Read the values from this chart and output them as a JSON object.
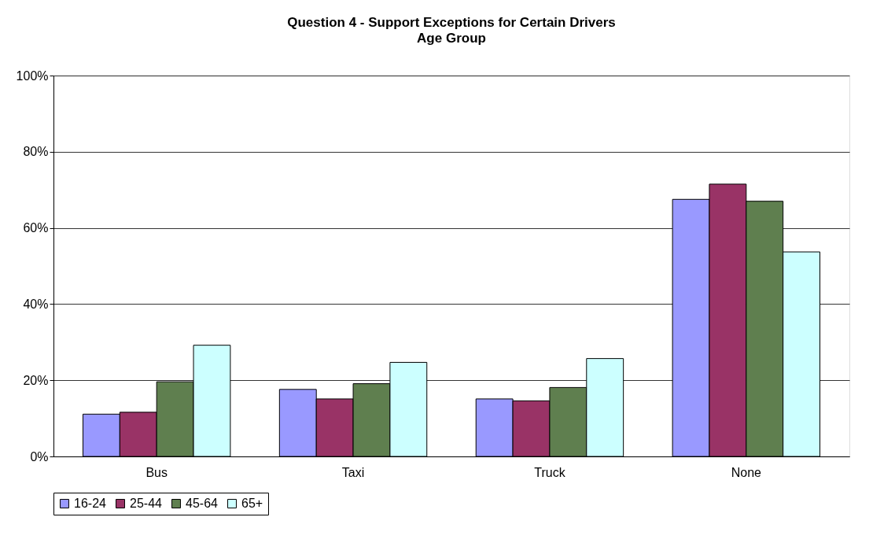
{
  "chart_data": {
    "type": "bar",
    "title": "Question 4 - Support Exceptions for Certain Drivers",
    "subtitle": "Age Group",
    "categories": [
      "Bus",
      "Taxi",
      "Truck",
      "None"
    ],
    "series": [
      {
        "name": "16-24",
        "color": "#9999ff",
        "values": [
          11.1,
          17.6,
          15.1,
          67.5
        ]
      },
      {
        "name": "25-44",
        "color": "#993366",
        "values": [
          11.6,
          15.1,
          14.6,
          71.5
        ]
      },
      {
        "name": "45-64",
        "color": "#5f7f4f",
        "values": [
          19.6,
          19.1,
          18.1,
          67.0
        ]
      },
      {
        "name": "65+",
        "color": "#ccffff",
        "values": [
          29.2,
          24.7,
          25.7,
          53.7
        ]
      }
    ],
    "ylim": [
      0,
      100
    ],
    "yticks": [
      {
        "value": 0,
        "label": "0%"
      },
      {
        "value": 20,
        "label": "20%"
      },
      {
        "value": 40,
        "label": "40%"
      },
      {
        "value": 60,
        "label": "60%"
      },
      {
        "value": 80,
        "label": "80%"
      },
      {
        "value": 100,
        "label": "100%"
      }
    ],
    "grid": "y",
    "legend": "bottom"
  }
}
